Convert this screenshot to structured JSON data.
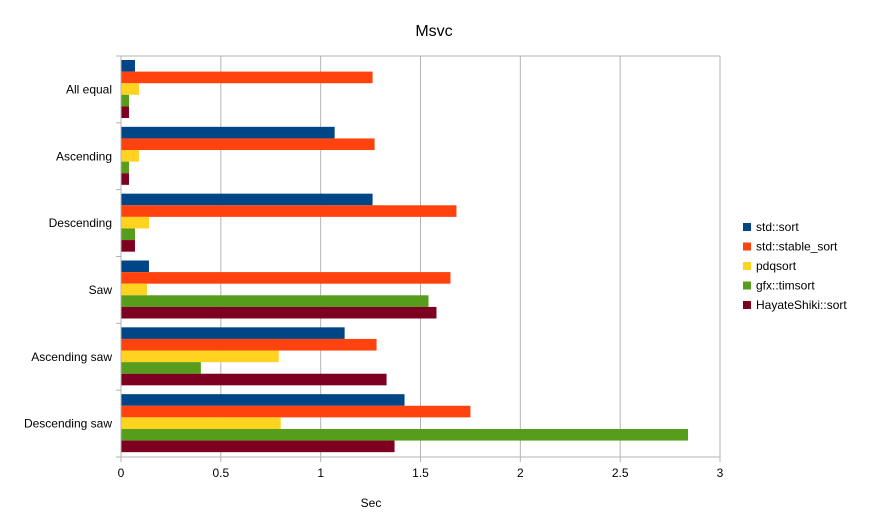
{
  "chart_data": {
    "type": "bar",
    "orientation": "horizontal",
    "title": "Msvc",
    "xlabel": "Sec",
    "ylabel": "",
    "xlim": [
      0,
      3
    ],
    "xticks": [
      "0",
      "0.5",
      "1",
      "1.5",
      "2",
      "2.5",
      "3"
    ],
    "grid": true,
    "legend_position": "right",
    "categories": [
      "All equal",
      "Ascending",
      "Descending",
      "Saw",
      "Ascending saw",
      "Descending saw"
    ],
    "series": [
      {
        "name": "std::sort",
        "color": "#004586",
        "values": [
          0.07,
          1.07,
          1.26,
          0.14,
          1.12,
          1.42
        ]
      },
      {
        "name": "std::stable_sort",
        "color": "#ff420e",
        "values": [
          1.26,
          1.27,
          1.68,
          1.65,
          1.28,
          1.75
        ]
      },
      {
        "name": "pdqsort",
        "color": "#ffd320",
        "values": [
          0.09,
          0.09,
          0.14,
          0.13,
          0.79,
          0.8
        ]
      },
      {
        "name": "gfx::timsort",
        "color": "#579d1c",
        "values": [
          0.04,
          0.04,
          0.07,
          1.54,
          0.4,
          2.84
        ]
      },
      {
        "name": "HayateShiki::sort",
        "color": "#7e0021",
        "values": [
          0.04,
          0.04,
          0.07,
          1.58,
          1.33,
          1.37
        ]
      }
    ]
  }
}
